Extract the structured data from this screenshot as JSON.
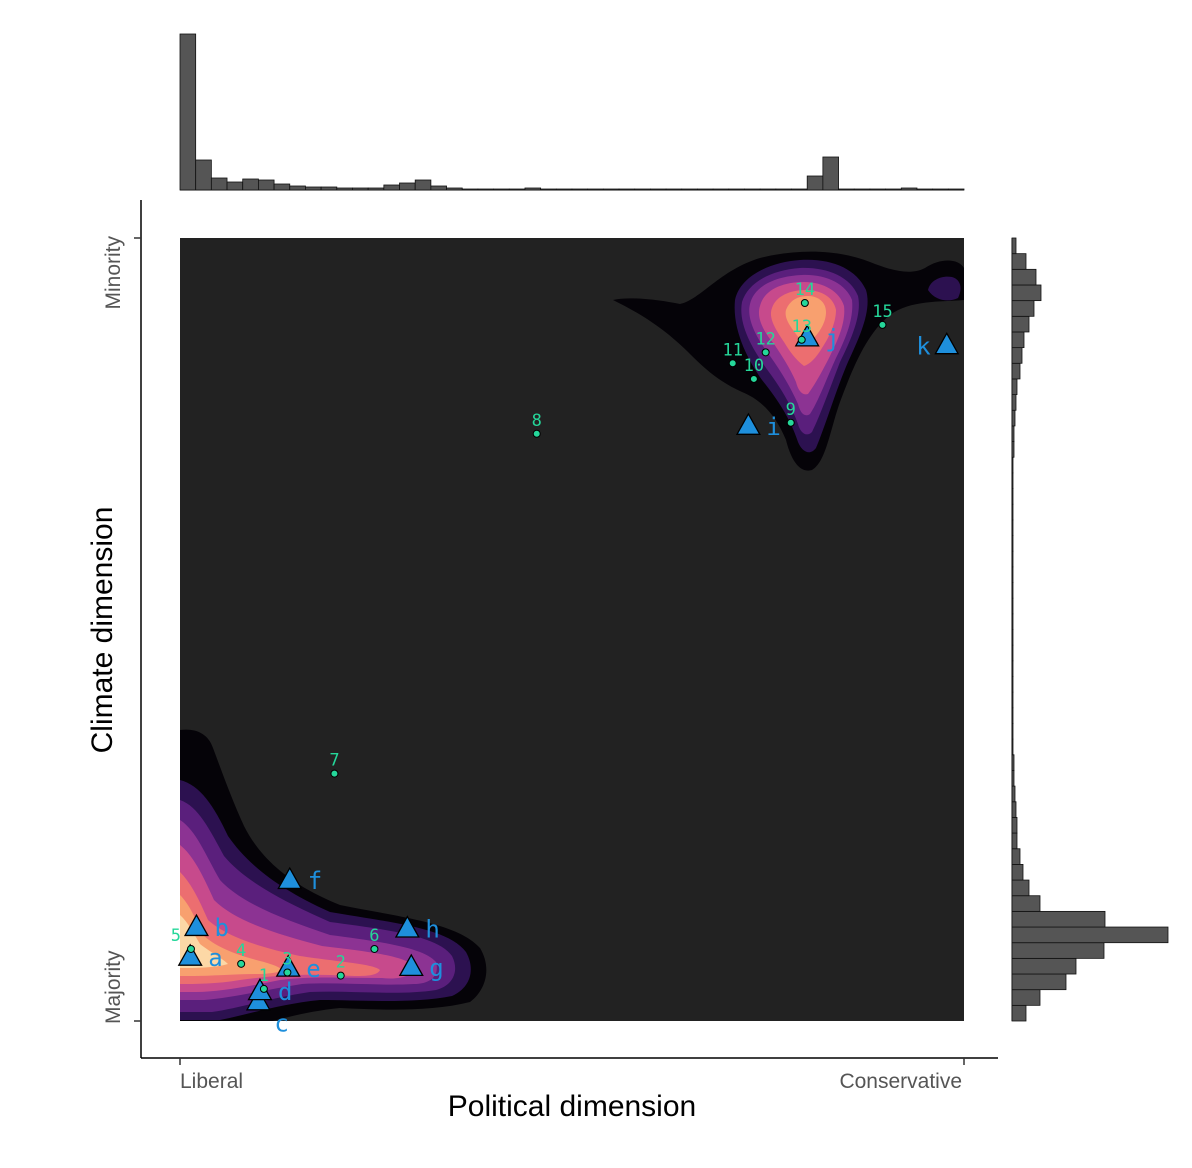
{
  "chart_data": {
    "type": "scatter",
    "title": "",
    "xlabel": "Political dimension",
    "ylabel": "Climate dimension",
    "xlim": [
      0,
      1
    ],
    "ylim": [
      0,
      1
    ],
    "x_tick_labels": [
      "Liberal",
      "Conservative"
    ],
    "y_tick_labels": [
      "Majority",
      "Minority"
    ],
    "colors": {
      "panel_background": "#222222",
      "density_low": "#050308",
      "density_mid": "#8c3393",
      "density_high": "#fcd8a6",
      "point": "#25d79a",
      "triangle": "#1e8fdc",
      "histogram": "#555555"
    },
    "points": [
      {
        "label": "1",
        "x": 0.107,
        "y": 0.041
      },
      {
        "label": "2",
        "x": 0.205,
        "y": 0.058
      },
      {
        "label": "3",
        "x": 0.137,
        "y": 0.062
      },
      {
        "label": "4",
        "x": 0.078,
        "y": 0.073
      },
      {
        "label": "5",
        "x": 0.014,
        "y": 0.092
      },
      {
        "label": "6",
        "x": 0.248,
        "y": 0.092
      },
      {
        "label": "7",
        "x": 0.197,
        "y": 0.316
      },
      {
        "label": "8",
        "x": 0.455,
        "y": 0.75
      },
      {
        "label": "9",
        "x": 0.779,
        "y": 0.764
      },
      {
        "label": "10",
        "x": 0.732,
        "y": 0.82
      },
      {
        "label": "11",
        "x": 0.705,
        "y": 0.84
      },
      {
        "label": "12",
        "x": 0.747,
        "y": 0.854
      },
      {
        "label": "13",
        "x": 0.793,
        "y": 0.87
      },
      {
        "label": "14",
        "x": 0.797,
        "y": 0.917
      },
      {
        "label": "15",
        "x": 0.896,
        "y": 0.889
      }
    ],
    "triangles": [
      {
        "label": "a",
        "x": 0.013,
        "y": 0.082
      },
      {
        "label": "b",
        "x": 0.021,
        "y": 0.12
      },
      {
        "label": "c",
        "x": 0.1,
        "y": 0.025
      },
      {
        "label": "d",
        "x": 0.102,
        "y": 0.038
      },
      {
        "label": "e",
        "x": 0.138,
        "y": 0.068
      },
      {
        "label": "f",
        "x": 0.14,
        "y": 0.18
      },
      {
        "label": "g",
        "x": 0.295,
        "y": 0.069
      },
      {
        "label": "h",
        "x": 0.29,
        "y": 0.118
      },
      {
        "label": "i",
        "x": 0.725,
        "y": 0.76
      },
      {
        "label": "j",
        "x": 0.8,
        "y": 0.873
      },
      {
        "label": "k",
        "x": 0.978,
        "y": 0.863
      }
    ],
    "top_histogram": {
      "bin_width": 0.02,
      "counts": [
        156,
        30,
        12,
        8,
        11,
        10,
        6,
        4,
        3,
        3,
        2,
        2,
        2,
        5,
        7,
        10,
        4,
        2,
        1,
        1,
        1,
        1,
        2,
        1,
        1,
        1,
        1,
        1,
        1,
        1,
        1,
        1,
        1,
        1,
        1,
        1,
        1,
        1,
        1,
        1,
        14,
        33,
        1,
        1,
        1,
        1,
        2,
        1,
        1,
        1
      ]
    },
    "right_histogram": {
      "bin_width": 0.02,
      "counts": [
        14,
        28,
        54,
        64,
        92,
        156,
        93,
        28,
        17,
        11,
        8,
        5,
        5,
        4,
        3,
        2,
        2,
        1,
        1,
        1,
        1,
        1,
        1,
        1,
        1,
        1,
        1,
        1,
        1,
        1,
        1,
        1,
        1,
        1,
        1,
        1,
        2,
        2,
        3,
        4,
        5,
        8,
        10,
        12,
        17,
        22,
        29,
        24,
        14,
        4
      ]
    }
  }
}
